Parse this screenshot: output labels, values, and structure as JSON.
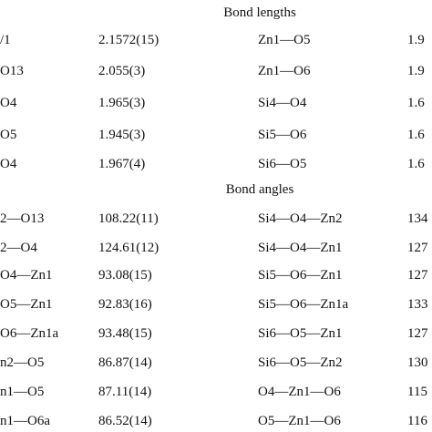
{
  "sections": [
    {
      "title": "Bond lengths",
      "rows": [
        [
          "/1",
          "2.1572(15)",
          "Zn1—O5",
          "1.9"
        ],
        [
          "O13",
          "2.055(3)",
          "Zn1—O6",
          "1.9"
        ],
        [
          "O4",
          "1.965(3)",
          "Si4—O4",
          "1.6"
        ],
        [
          "O5",
          "1.945(3)",
          "Si5—O6",
          "1.6"
        ],
        [
          "O4",
          "1.967(4)",
          "Si6—O5",
          "1.6"
        ]
      ]
    },
    {
      "title": "Bond angles",
      "rows": [
        [
          "2—O13",
          "108.22(11)",
          "Si4—O4—Zn2",
          "134"
        ],
        [
          "2—O4",
          "124.61(12)",
          "Si4—O4—Zn1",
          "127"
        ],
        [
          "O4—Zn1",
          "93.08(15)",
          "Si5—O6—Zn1",
          "127"
        ],
        [
          "O5—Zn1",
          "92.83(16)",
          "Si5—O6—Zn1a",
          "133"
        ],
        [
          "O6—Zn1a",
          "93.48(15)",
          "Si6—O5—Zn1",
          "127"
        ],
        [
          "n2—O5",
          "86.87(14)",
          "Si6—O5—Zn2",
          "130"
        ],
        [
          "n1—O5",
          "87.11(14)",
          "O4—Zn1—O6",
          "115"
        ],
        [
          "n1—O6a",
          "86.52(14)",
          "O5—Zn1—O6",
          "116"
        ]
      ]
    }
  ]
}
